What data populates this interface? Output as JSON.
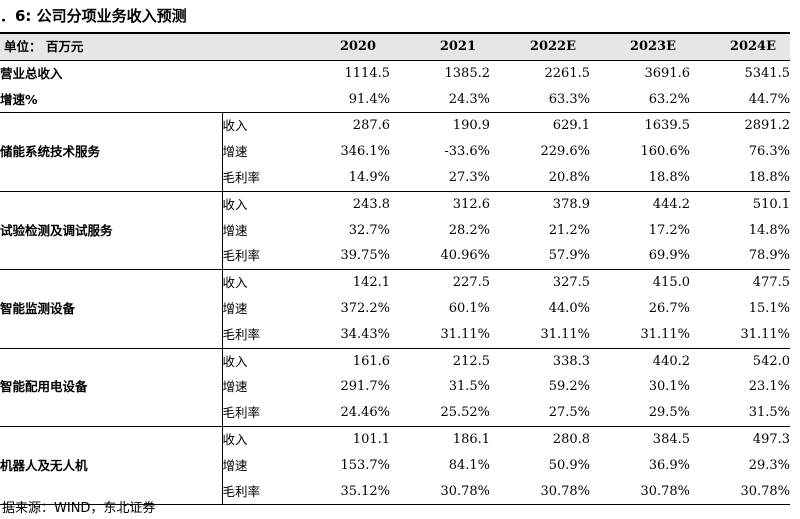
{
  "title": "．6:  公司分项业务收入预测",
  "table": {
    "unit_label": "单位：  百万元",
    "years": [
      "2020",
      "2021",
      "2022E",
      "2023E",
      "2024E"
    ],
    "summary_rows": [
      {
        "label": "营业总收入",
        "values": [
          "1114.5",
          "1385.2",
          "2261.5",
          "3691.6",
          "5341.5"
        ]
      },
      {
        "label": "增速%",
        "values": [
          "91.4%",
          "24.3%",
          "63.3%",
          "63.2%",
          "44.7%"
        ]
      }
    ],
    "segments": [
      {
        "name": "储能系统技术服务",
        "metrics": [
          {
            "label": "收入",
            "values": [
              "287.6",
              "190.9",
              "629.1",
              "1639.5",
              "2891.2"
            ]
          },
          {
            "label": "增速",
            "values": [
              "346.1%",
              "-33.6%",
              "229.6%",
              "160.6%",
              "76.3%"
            ]
          },
          {
            "label": "毛利率",
            "values": [
              "14.9%",
              "27.3%",
              "20.8%",
              "18.8%",
              "18.8%"
            ]
          }
        ]
      },
      {
        "name": "试验检测及调试服务",
        "metrics": [
          {
            "label": "收入",
            "values": [
              "243.8",
              "312.6",
              "378.9",
              "444.2",
              "510.1"
            ]
          },
          {
            "label": "增速",
            "values": [
              "32.7%",
              "28.2%",
              "21.2%",
              "17.2%",
              "14.8%"
            ]
          },
          {
            "label": "毛利率",
            "values": [
              "39.75%",
              "40.96%",
              "57.9%",
              "69.9%",
              "78.9%"
            ]
          }
        ]
      },
      {
        "name": "智能监测设备",
        "metrics": [
          {
            "label": "收入",
            "values": [
              "142.1",
              "227.5",
              "327.5",
              "415.0",
              "477.5"
            ]
          },
          {
            "label": "增速",
            "values": [
              "372.2%",
              "60.1%",
              "44.0%",
              "26.7%",
              "15.1%"
            ]
          },
          {
            "label": "毛利率",
            "values": [
              "34.43%",
              "31.11%",
              "31.11%",
              "31.11%",
              "31.11%"
            ]
          }
        ]
      },
      {
        "name": "智能配用电设备",
        "metrics": [
          {
            "label": "收入",
            "values": [
              "161.6",
              "212.5",
              "338.3",
              "440.2",
              "542.0"
            ]
          },
          {
            "label": "增速",
            "values": [
              "291.7%",
              "31.5%",
              "59.2%",
              "30.1%",
              "23.1%"
            ]
          },
          {
            "label": "毛利率",
            "values": [
              "24.46%",
              "25.52%",
              "27.5%",
              "29.5%",
              "31.5%"
            ]
          }
        ]
      },
      {
        "name": "机器人及无人机",
        "metrics": [
          {
            "label": "收入",
            "values": [
              "101.1",
              "186.1",
              "280.8",
              "384.5",
              "497.3"
            ]
          },
          {
            "label": "增速",
            "values": [
              "153.7%",
              "84.1%",
              "50.9%",
              "36.9%",
              "29.3%"
            ]
          },
          {
            "label": "毛利率",
            "values": [
              "35.12%",
              "30.78%",
              "30.78%",
              "30.78%",
              "30.78%"
            ]
          }
        ]
      }
    ]
  },
  "source": "据来源：WIND，东北证券"
}
